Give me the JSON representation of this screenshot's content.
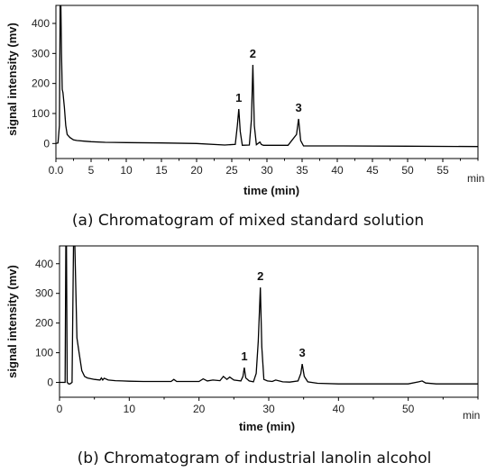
{
  "chart_data": [
    {
      "type": "line",
      "caption": "(a) Chromatogram of mixed standard solution",
      "xlabel": "time  (min)",
      "x_unit": "min",
      "ylabel": "signal intensity  (mv)",
      "xlim": [
        0,
        60
      ],
      "ylim": [
        -50,
        460
      ],
      "xticks": [
        "0.0",
        "5",
        "10",
        "15",
        "20",
        "25",
        "30",
        "35",
        "40",
        "45",
        "50",
        "55"
      ],
      "xtick_values": [
        0,
        5,
        10,
        15,
        20,
        25,
        30,
        35,
        40,
        45,
        50,
        55
      ],
      "yticks": [
        0,
        100,
        200,
        300,
        400
      ],
      "peak_labels": [
        "1",
        "2",
        "3"
      ],
      "series": [
        {
          "x": [
            0,
            0.3,
            0.5,
            0.6,
            0.7,
            0.8,
            0.9,
            1.0,
            1.2,
            1.4,
            1.6,
            2.0,
            2.5,
            3,
            4,
            5,
            7,
            10,
            15,
            20,
            24,
            25.5,
            25.8,
            26.0,
            26.2,
            26.5,
            27.5,
            27.8,
            28.0,
            28.2,
            28.5,
            29.0,
            29.2,
            29.5,
            30,
            33,
            34.2,
            34.5,
            34.8,
            35.2,
            37,
            40,
            50,
            60
          ],
          "y": [
            0,
            2,
            60,
            460,
            460,
            300,
            180,
            170,
            120,
            60,
            30,
            20,
            12,
            10,
            8,
            6,
            4,
            3,
            2,
            0,
            -5,
            -3,
            60,
            115,
            40,
            -6,
            -5,
            80,
            262,
            60,
            -4,
            5,
            -3,
            -6,
            -6,
            -6,
            30,
            82,
            10,
            -8,
            -8,
            -8,
            -9,
            -10
          ]
        }
      ]
    },
    {
      "type": "line",
      "caption": "(b) Chromatogram of industrial lanolin alcohol",
      "xlabel": "time  (min)",
      "x_unit": "min",
      "ylabel": "signal intensity  (mv)",
      "xlim": [
        0,
        60
      ],
      "ylim": [
        -50,
        460
      ],
      "xticks": [
        "0",
        "10",
        "20",
        "30",
        "40",
        "50"
      ],
      "xtick_values": [
        0,
        10,
        20,
        30,
        40,
        50
      ],
      "yticks": [
        0,
        100,
        200,
        300,
        400
      ],
      "peak_labels": [
        "1",
        "2",
        "3"
      ],
      "series": [
        {
          "x": [
            0,
            0.8,
            0.9,
            1.0,
            1.1,
            1.3,
            1.5,
            1.8,
            2.0,
            2.2,
            2.5,
            2.8,
            3.2,
            3.6,
            4,
            5,
            5.8,
            6.0,
            6.2,
            6.4,
            7,
            8,
            9,
            10,
            12,
            14,
            16,
            16.4,
            16.8,
            18,
            20,
            20.6,
            21.2,
            22,
            23,
            23.5,
            24,
            24.4,
            25,
            26,
            26.3,
            26.5,
            26.7,
            27.2,
            27.8,
            28.2,
            28.5,
            28.8,
            29.0,
            29.3,
            29.8,
            30.5,
            31,
            32,
            33,
            34.2,
            34.6,
            34.8,
            35.1,
            35.6,
            37,
            40,
            45,
            50,
            51.5,
            52,
            52.5,
            54,
            60
          ],
          "y": [
            0,
            0,
            460,
            460,
            0,
            -5,
            -5,
            0,
            460,
            460,
            150,
            100,
            40,
            20,
            15,
            10,
            8,
            15,
            8,
            14,
            8,
            6,
            5,
            4,
            3,
            3,
            3,
            10,
            3,
            3,
            3,
            12,
            5,
            8,
            6,
            20,
            10,
            18,
            8,
            5,
            20,
            50,
            15,
            5,
            2,
            30,
            140,
            320,
            120,
            10,
            5,
            3,
            8,
            2,
            1,
            5,
            30,
            62,
            20,
            2,
            -3,
            -5,
            -5,
            -5,
            2,
            5,
            -2,
            -5,
            -5
          ]
        }
      ]
    }
  ]
}
